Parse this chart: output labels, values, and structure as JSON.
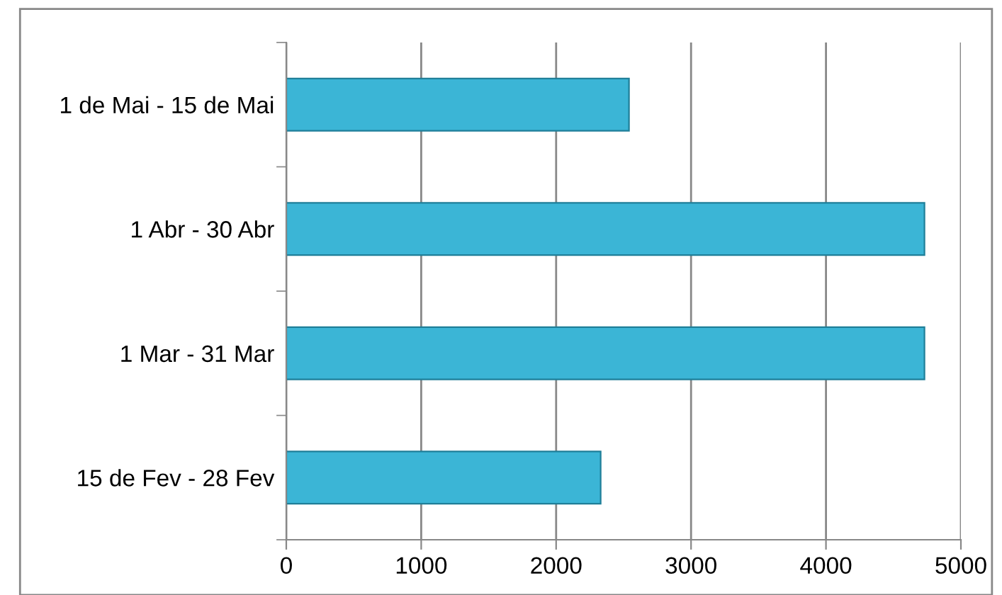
{
  "chart_data": {
    "type": "bar",
    "orientation": "horizontal",
    "categories": [
      "1 de Mai - 15 de Mai",
      "1 Abr - 30 Abr",
      "1 Mar - 31 Mar",
      "15 de Fev - 28 Fev"
    ],
    "values": [
      2540,
      4730,
      4730,
      2330
    ],
    "color": "#3bb5d6",
    "xlim": [
      0,
      5000
    ],
    "xticks": [
      0,
      1000,
      2000,
      3000,
      4000,
      5000
    ],
    "grid": "x"
  }
}
